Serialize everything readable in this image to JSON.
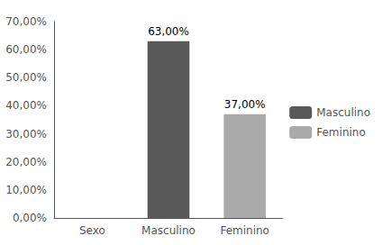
{
  "chart_data": {
    "type": "bar",
    "categories": [
      "Sexo",
      "Masculino",
      "Feminino"
    ],
    "series": [
      {
        "name": "Masculino",
        "color": "#595959",
        "values": [
          null,
          63.0,
          null
        ],
        "value_labels": [
          null,
          "63,00%",
          null
        ]
      },
      {
        "name": "Feminino",
        "color": "#aaaaaa",
        "values": [
          null,
          null,
          37.0
        ],
        "value_labels": [
          null,
          null,
          "37,00%"
        ]
      }
    ],
    "stacked": true,
    "data_labels": true,
    "ylim": [
      0,
      70
    ],
    "yticks": [
      {
        "value": 0,
        "label": "0,00%"
      },
      {
        "value": 10,
        "label": "10,00%"
      },
      {
        "value": 20,
        "label": "20,00%"
      },
      {
        "value": 30,
        "label": "30,00%"
      },
      {
        "value": 40,
        "label": "40,00%"
      },
      {
        "value": 50,
        "label": "50,00%"
      },
      {
        "value": 60,
        "label": "60,00%"
      },
      {
        "value": 70,
        "label": "70,00%"
      }
    ],
    "grid": false,
    "legend": "right"
  }
}
